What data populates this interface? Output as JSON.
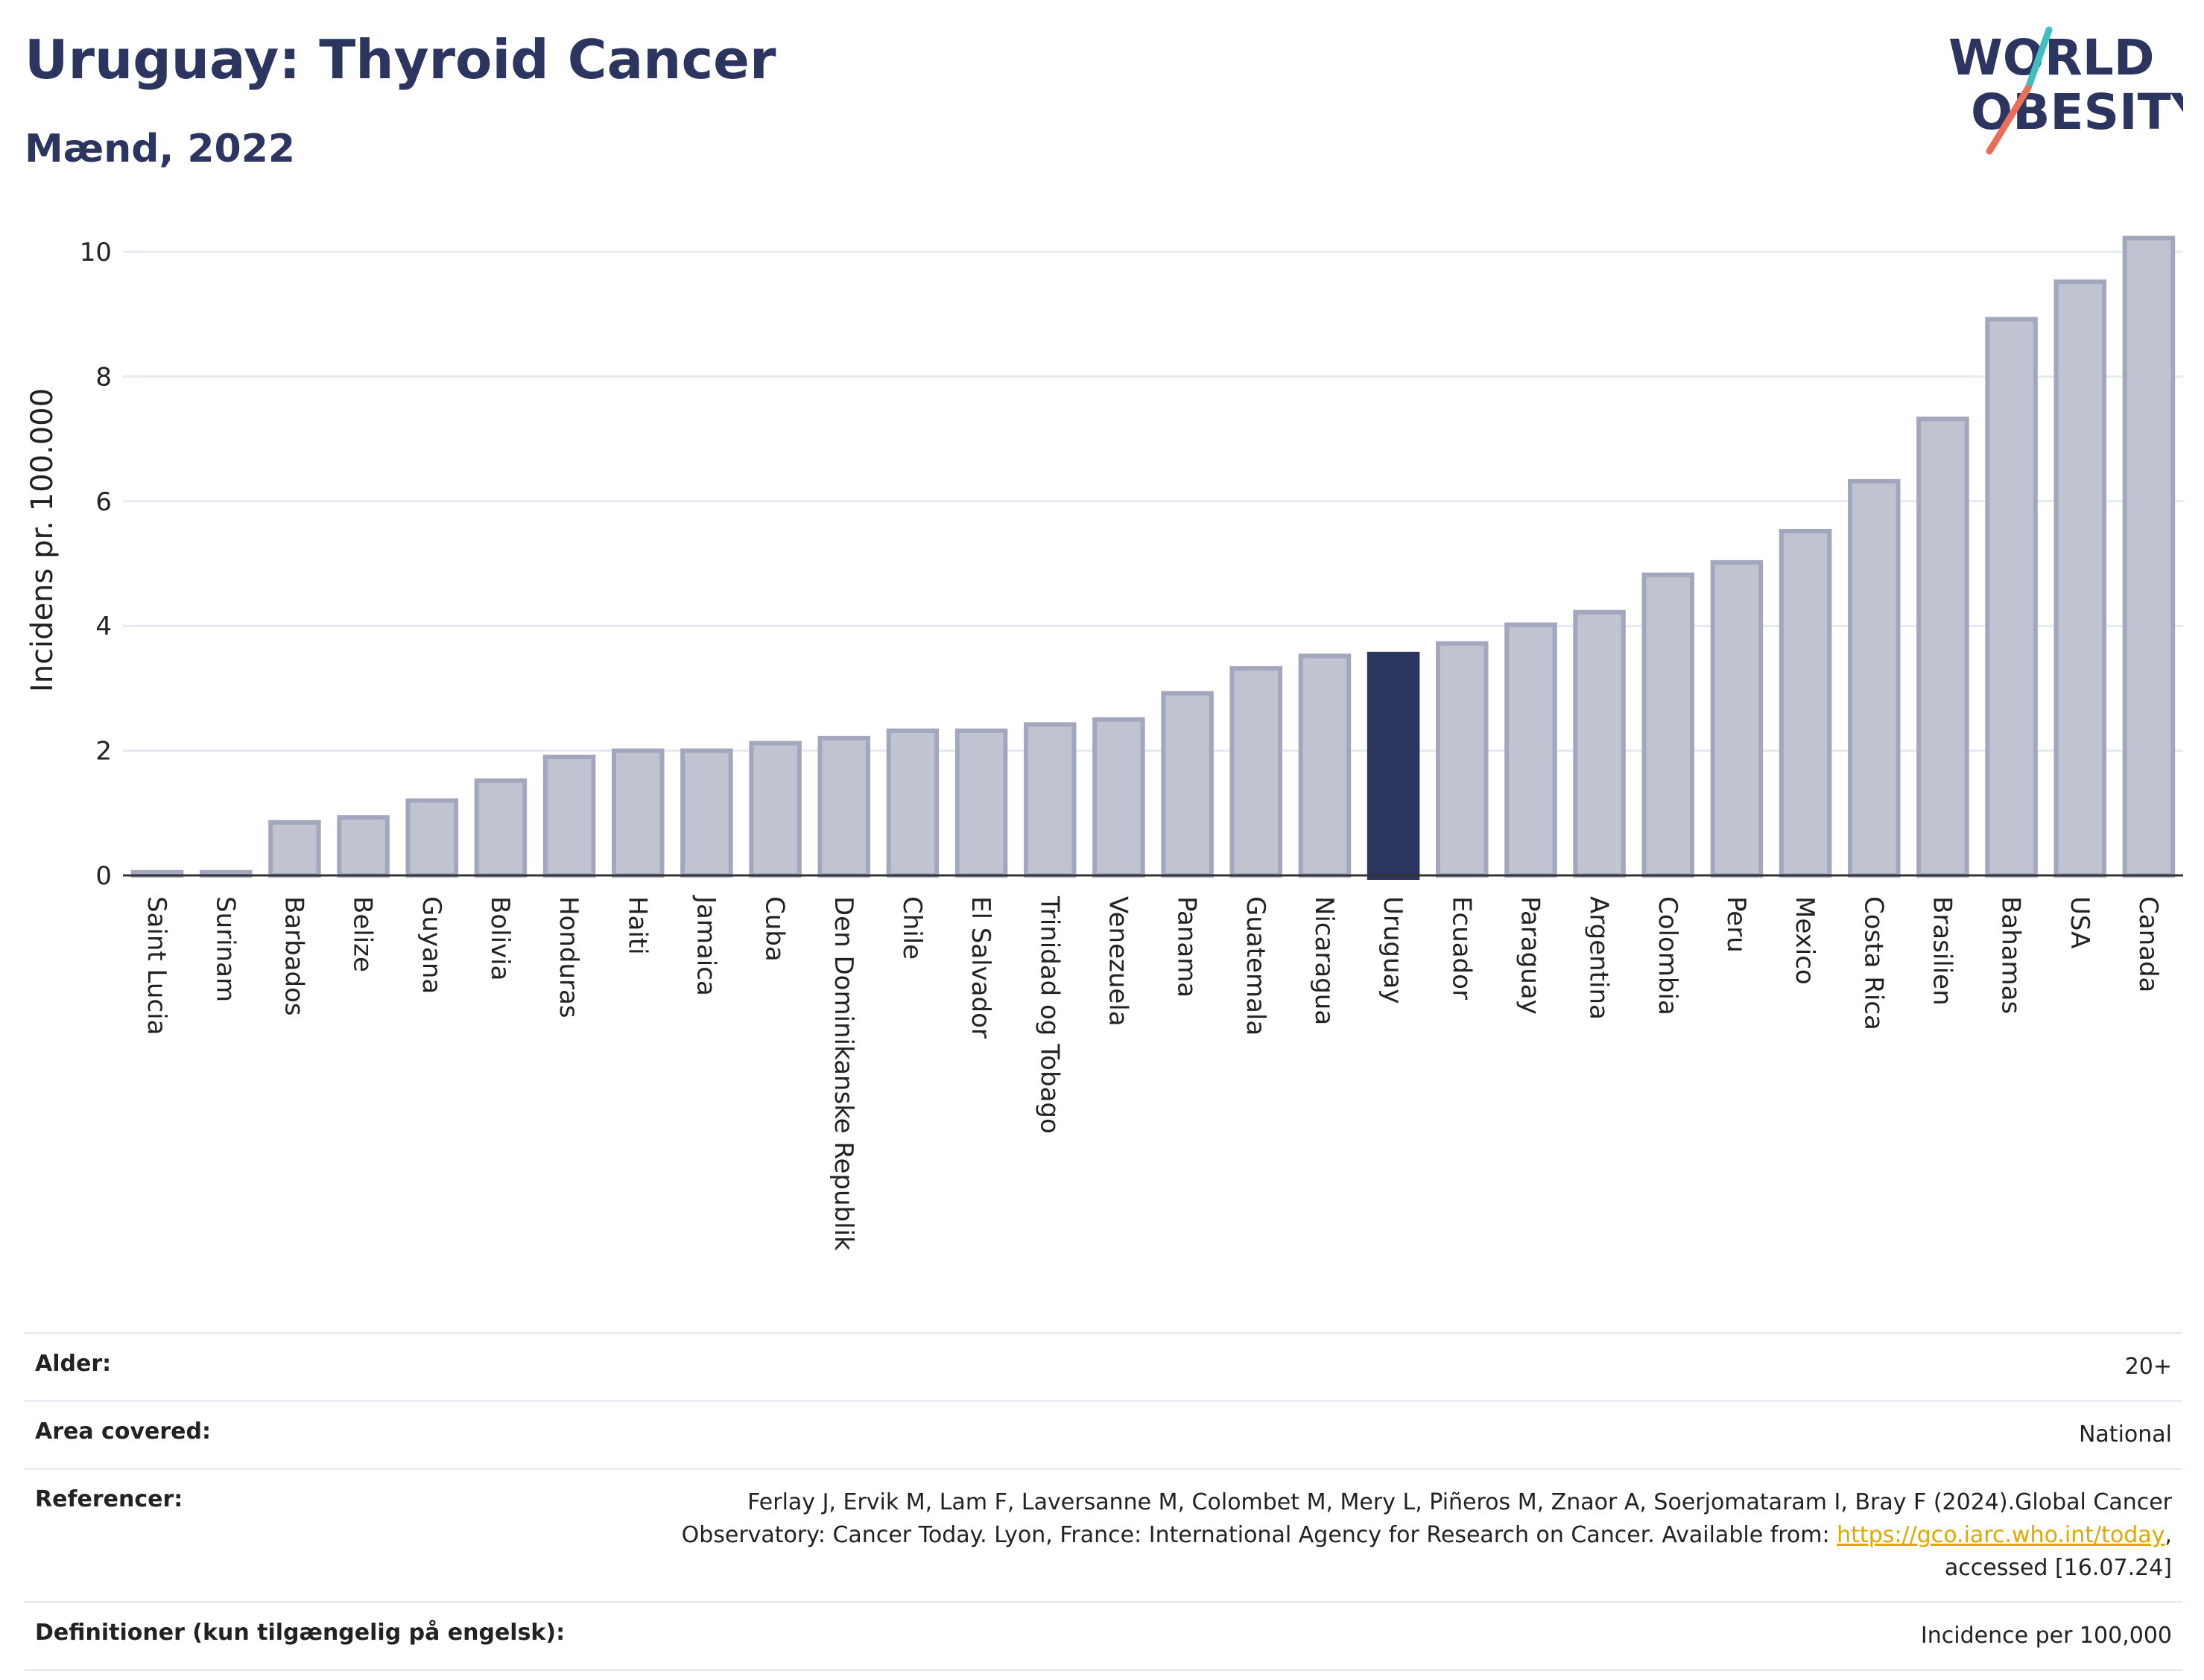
{
  "header": {
    "title": "Uruguay: Thyroid Cancer",
    "subtitle": "Mænd, 2022"
  },
  "logo": {
    "line1": "WORLD",
    "line2": "OBESITY",
    "text_color": "#2b3560",
    "slash_colors": [
      "#3fbfbf",
      "#e8705a"
    ]
  },
  "colors": {
    "bar": "#c0c3d0",
    "bar_edge": "#a3a7bd",
    "highlight": "#2b3560",
    "grid": "#e6eaf0"
  },
  "chart_data": {
    "type": "bar",
    "ylabel": "Incidens pr. 100.000",
    "xlabel": "",
    "ylim": [
      0,
      10.5
    ],
    "yticks": [
      0,
      2,
      4,
      6,
      8,
      10
    ],
    "grid": true,
    "highlight": "Uruguay",
    "categories": [
      "Saint Lucia",
      "Surinam",
      "Barbados",
      "Belize",
      "Guyana",
      "Bolivia",
      "Honduras",
      "Haiti",
      "Jamaica",
      "Cuba",
      "Den Dominikanske Republik",
      "Chile",
      "El Salvador",
      "Trinidad og Tobago",
      "Venezuela",
      "Panama",
      "Guatemala",
      "Nicaragua",
      "Uruguay",
      "Ecuador",
      "Paraguay",
      "Argentina",
      "Colombia",
      "Peru",
      "Mexico",
      "Costa Rica",
      "Brasilien",
      "Bahamas",
      "USA",
      "Canada"
    ],
    "values": [
      0.05,
      0.05,
      0.85,
      0.93,
      1.2,
      1.52,
      1.9,
      2.0,
      2.0,
      2.12,
      2.2,
      2.32,
      2.32,
      2.42,
      2.5,
      2.92,
      3.32,
      3.52,
      3.55,
      3.72,
      4.02,
      4.22,
      4.82,
      5.02,
      5.52,
      6.32,
      7.32,
      8.92,
      9.52,
      10.22
    ]
  },
  "info": {
    "age_label": "Alder:",
    "age_value": "20+",
    "area_label": "Area covered:",
    "area_value": "National",
    "ref_label": "Referencer:",
    "ref_text_1": "Ferlay J, Ervik M, Lam F, Laversanne M, Colombet M, Mery L, Piñeros M, Znaor A, Soerjomataram I, Bray F (2024).Global Cancer Observatory: Cancer Today. Lyon, France: International Agency for Research on Cancer. Available from: ",
    "ref_link": "https://gco.iarc.who.int/today",
    "ref_text_2": ", accessed [16.07.24]",
    "def_label": "Definitioner (kun tilgængelig på engelsk):",
    "def_value": "Incidence per 100,000"
  }
}
